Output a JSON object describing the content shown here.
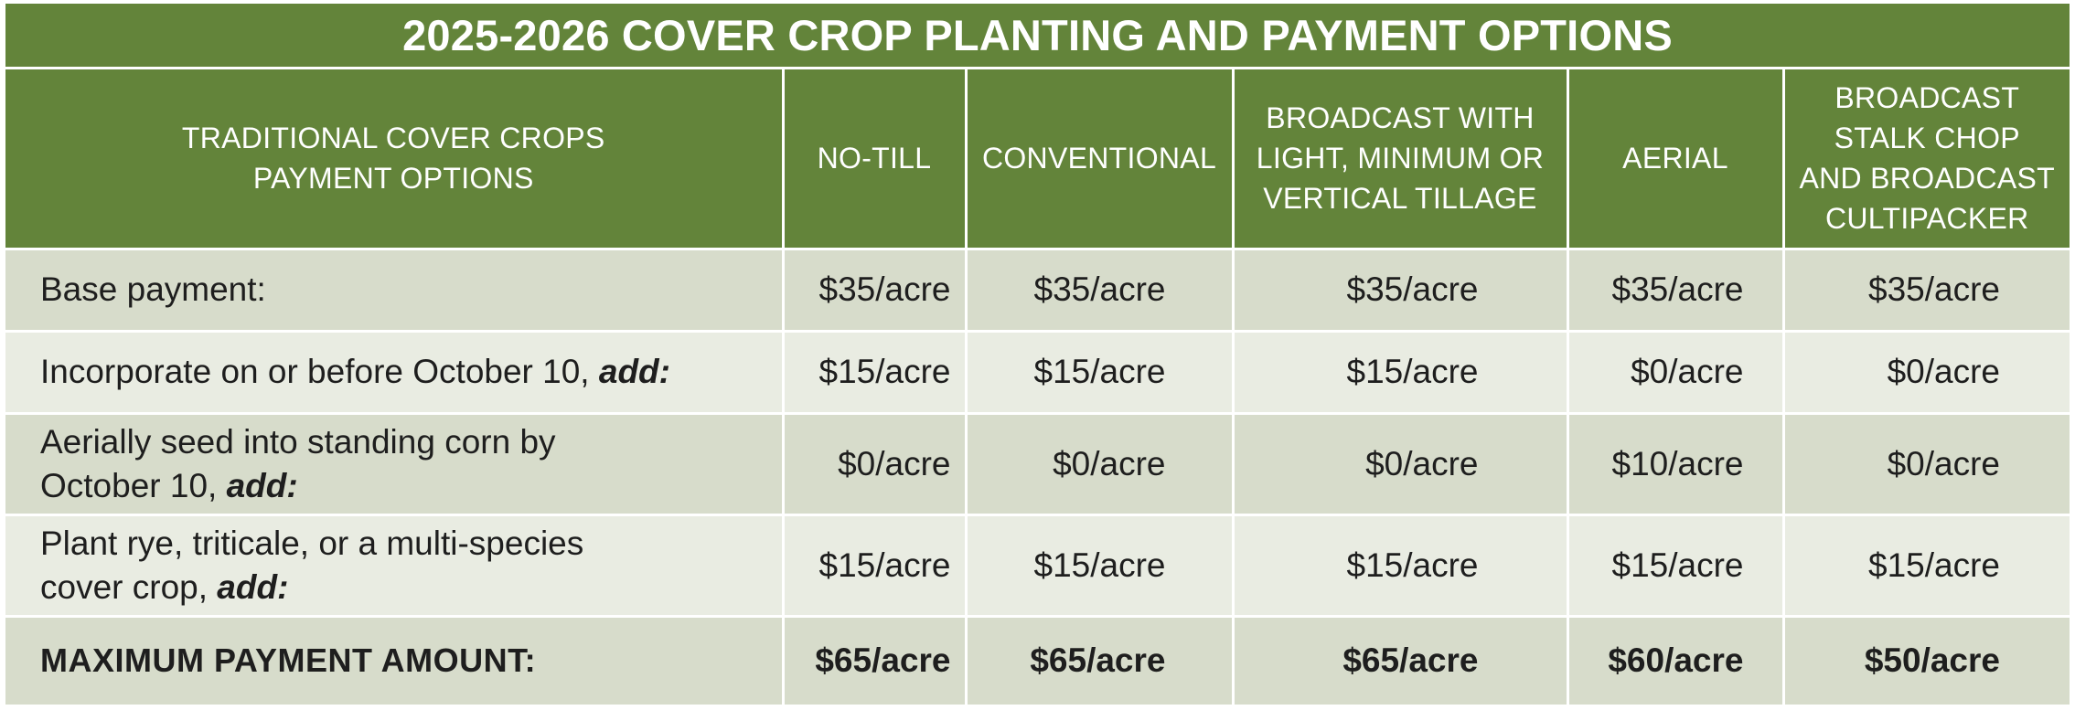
{
  "title": "2025-2026 COVER CROP PLANTING AND PAYMENT OPTIONS",
  "columns": {
    "label": [
      "TRADITIONAL COVER CROPS",
      "PAYMENT OPTIONS"
    ],
    "notill": "NO-TILL",
    "conventional": "CONVENTIONAL",
    "broadcast_tillage": [
      "BROADCAST WITH",
      "LIGHT, MINIMUM OR",
      "VERTICAL TILLAGE"
    ],
    "aerial": "AERIAL",
    "broadcast_stalk": [
      "BROADCAST",
      "STALK CHOP",
      "AND BROADCAST",
      "CULTIPACKER"
    ]
  },
  "rows": [
    {
      "label": "Base payment:",
      "values": [
        "$35/acre",
        "$35/acre",
        "$35/acre",
        "$35/acre",
        "$35/acre"
      ]
    },
    {
      "label_lines": [
        "Incorporate on or before October 10, "
      ],
      "label_em": "add:",
      "values": [
        "$15/acre",
        "$15/acre",
        "$15/acre",
        "$0/acre",
        "$0/acre"
      ]
    },
    {
      "label_lines": [
        "Aerially seed into standing corn by",
        "October 10, "
      ],
      "label_em": "add:",
      "values": [
        "$0/acre",
        "$0/acre",
        "$0/acre",
        "$10/acre",
        "$0/acre"
      ]
    },
    {
      "label_lines": [
        "Plant rye, triticale, or a multi-species",
        "cover crop, "
      ],
      "label_em": "add:",
      "values": [
        "$15/acre",
        "$15/acre",
        "$15/acre",
        "$15/acre",
        "$15/acre"
      ]
    }
  ],
  "total": {
    "label": "MAXIMUM PAYMENT AMOUNT:",
    "values": [
      "$65/acre",
      "$65/acre",
      "$65/acre",
      "$60/acre",
      "$50/acre"
    ]
  },
  "colors": {
    "header_green": "#63843a",
    "row_dark": "#d7dccb",
    "row_light": "#e9ece2"
  }
}
